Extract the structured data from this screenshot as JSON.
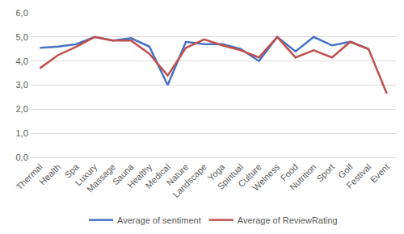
{
  "chart_data": {
    "type": "line",
    "categories": [
      "Thermal",
      "Health",
      "Spa",
      "Luxury",
      "Massage",
      "Sauna",
      "Healthy",
      "Medical",
      "Nature",
      "Landscape",
      "Yoga",
      "Spiritual",
      "Culture",
      "Welness",
      "Food",
      "Nutrition",
      "Sport",
      "Golf",
      "Festival",
      "Event"
    ],
    "series": [
      {
        "name": "Average of sentiment",
        "color": "#4472c4",
        "values": [
          4.55,
          4.6,
          4.7,
          5.0,
          4.85,
          4.95,
          4.6,
          3.0,
          4.8,
          4.7,
          4.7,
          4.5,
          4.0,
          5.0,
          4.4,
          5.0,
          4.65,
          4.8,
          4.5,
          null
        ]
      },
      {
        "name": "Average of ReviewRating",
        "color": "#c0504d",
        "values": [
          3.7,
          4.25,
          4.6,
          5.0,
          4.85,
          4.85,
          4.3,
          3.4,
          4.55,
          4.9,
          4.65,
          4.45,
          4.15,
          5.0,
          4.15,
          4.45,
          4.15,
          4.8,
          4.5,
          2.65
        ]
      }
    ],
    "ylim": [
      0,
      6
    ],
    "yticks": [
      {
        "value": 0,
        "label": "0,0"
      },
      {
        "value": 1,
        "label": "1,0"
      },
      {
        "value": 2,
        "label": "2,0"
      },
      {
        "value": 3,
        "label": "3,0"
      },
      {
        "value": 4,
        "label": "4,0"
      },
      {
        "value": 5,
        "label": "5,0"
      },
      {
        "value": 6,
        "label": "6,0"
      }
    ],
    "grid": true,
    "legend": "bottom"
  }
}
